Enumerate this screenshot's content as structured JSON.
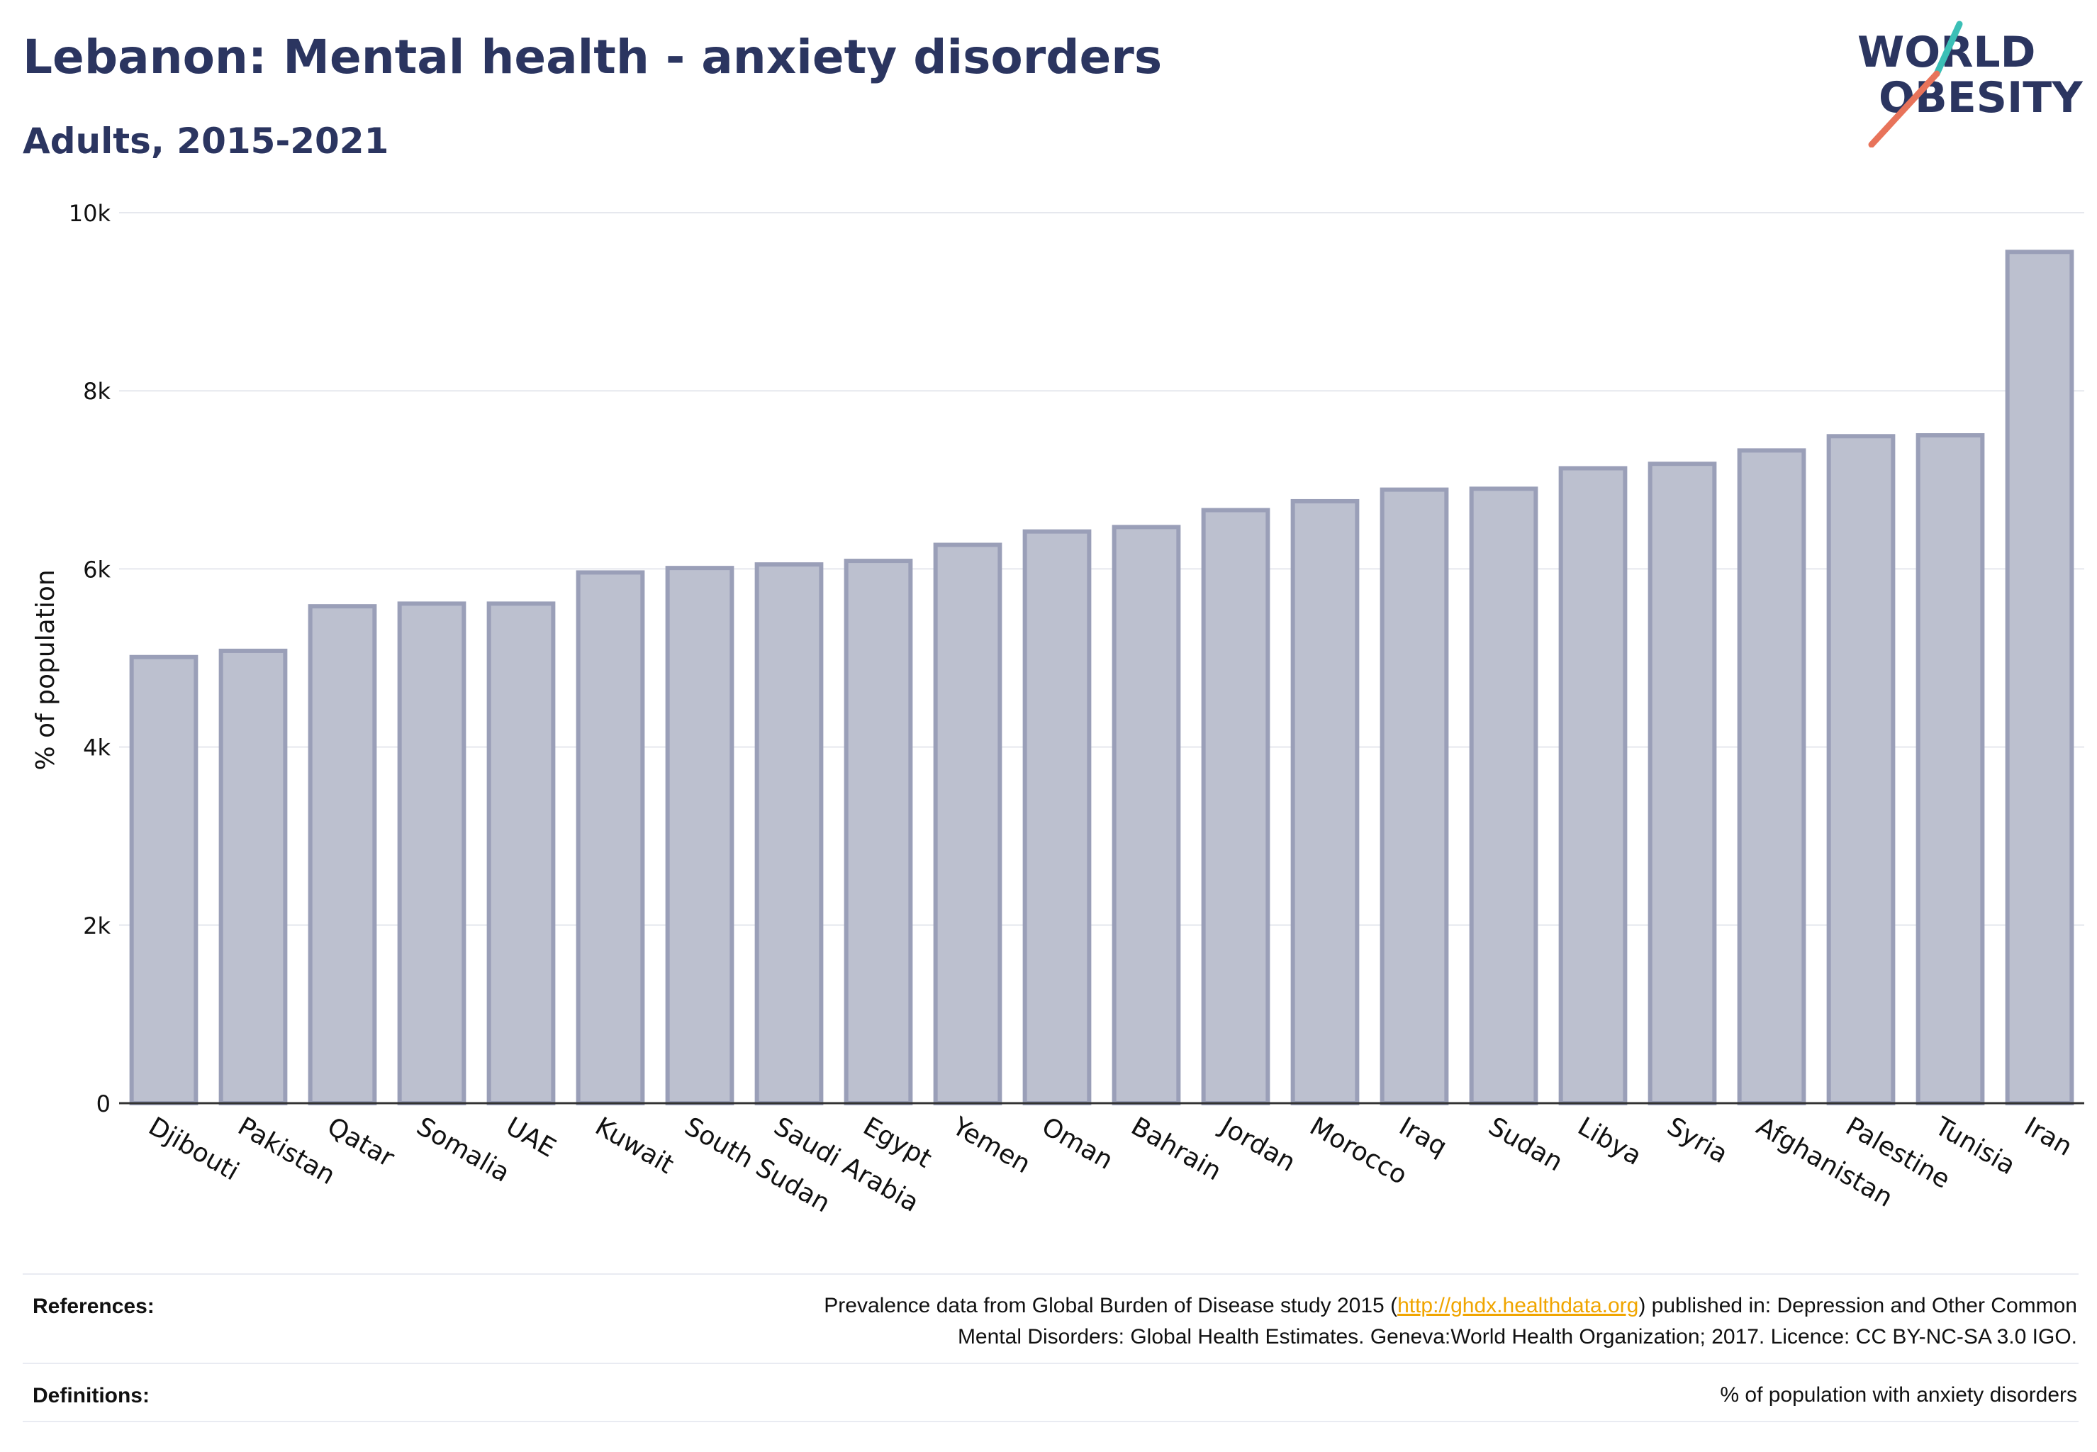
{
  "header": {
    "title": "Lebanon: Mental health - anxiety disorders",
    "subtitle": "Adults, 2015-2021"
  },
  "logo": {
    "line1": "WORLD",
    "line2": "OBESITY",
    "colors": {
      "text": "#2b3560",
      "accent_teal": "#3bbfb6",
      "accent_coral": "#e8735a"
    }
  },
  "chart_data": {
    "type": "bar",
    "ylabel": "% of population",
    "ylim": [
      0,
      10000
    ],
    "yticks": [
      {
        "value": 0,
        "label": "0"
      },
      {
        "value": 2000,
        "label": "2k"
      },
      {
        "value": 4000,
        "label": "4k"
      },
      {
        "value": 6000,
        "label": "6k"
      },
      {
        "value": 8000,
        "label": "8k"
      },
      {
        "value": 10000,
        "label": "10k"
      }
    ],
    "grid": true,
    "categories": [
      "Djibouti",
      "Pakistan",
      "Qatar",
      "Somalia",
      "UAE",
      "Kuwait",
      "South Sudan",
      "Saudi Arabia",
      "Egypt",
      "Yemen",
      "Oman",
      "Bahrain",
      "Jordan",
      "Morocco",
      "Iraq",
      "Sudan",
      "Libya",
      "Syria",
      "Afghanistan",
      "Palestine",
      "Tunisia",
      "Iran"
    ],
    "values": [
      5010,
      5080,
      5580,
      5610,
      5610,
      5960,
      6010,
      6050,
      6090,
      6270,
      6420,
      6470,
      6660,
      6760,
      6890,
      6900,
      7130,
      7180,
      7330,
      7490,
      7500,
      9560
    ],
    "bar_fill": "#bcc0cf",
    "bar_stroke": "#9a9fb8"
  },
  "footer": {
    "references_label": "References:",
    "references_line1_pre": "Prevalence data from Global Burden of Disease study 2015 (",
    "references_link": "http://ghdx.healthdata.org",
    "references_line1_post": ") published in: Depression and Other Common",
    "references_line2": "Mental Disorders: Global Health Estimates. Geneva:World Health Organization; 2017. Licence: CC BY-NC-SA 3.0 IGO.",
    "definitions_label": "Definitions:",
    "definitions_text": "% of population with anxiety disorders"
  }
}
